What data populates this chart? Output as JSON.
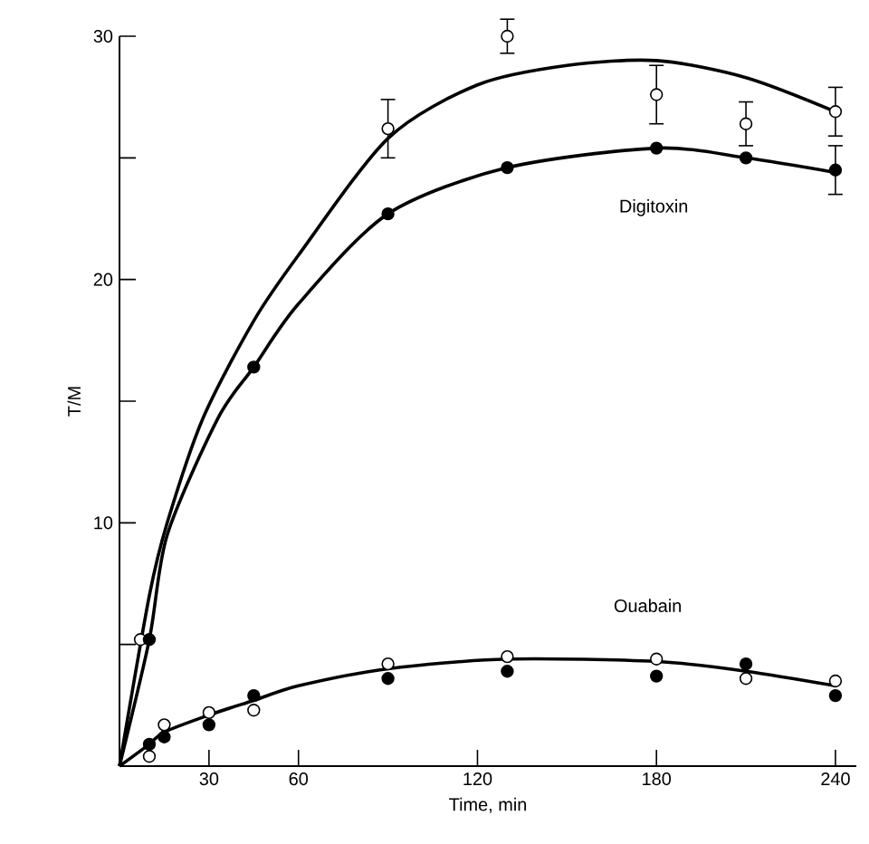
{
  "chart_data": {
    "type": "scatter",
    "xlabel": "Time,  min",
    "ylabel": "T/M",
    "xlim": [
      0,
      247
    ],
    "ylim": [
      0,
      30
    ],
    "xticks": [
      30,
      60,
      120,
      180,
      240
    ],
    "yticks": [
      {
        "value": 5,
        "label": null
      },
      10,
      {
        "value": 15,
        "label": null
      },
      20,
      {
        "value": 25,
        "label": null
      },
      30
    ],
    "annotations": [
      "Digitoxin",
      "Ouabain"
    ],
    "series": [
      {
        "type": "line",
        "marker": "none",
        "color": "#000000",
        "x": [
          0,
          10,
          16,
          28,
          45,
          60,
          90,
          120,
          150,
          180,
          210,
          240
        ],
        "values": [
          0,
          7,
          10,
          14.3,
          18.3,
          21,
          25.8,
          28,
          28.8,
          29,
          28.3,
          26.9
        ]
      },
      {
        "type": "line",
        "marker": "none",
        "color": "#000000",
        "x": [
          0,
          10,
          16,
          33,
          45,
          60,
          90,
          130,
          180,
          210,
          240
        ],
        "values": [
          0,
          5.2,
          9.5,
          14.3,
          16.4,
          19,
          22.7,
          24.6,
          25.4,
          25,
          24.4
        ]
      },
      {
        "type": "line",
        "marker": "none",
        "color": "#000000",
        "x": [
          0,
          10,
          15,
          30,
          45,
          60,
          90,
          130,
          180,
          210,
          240
        ],
        "values": [
          0,
          0.9,
          1.4,
          2.1,
          2.7,
          3.3,
          4,
          4.4,
          4.3,
          3.9,
          3.3
        ]
      },
      {
        "marker": "circle",
        "color": "#ffffff",
        "x": [
          7,
          90,
          130,
          180,
          210,
          240
        ],
        "values": [
          5.2,
          26.2,
          30,
          27.6,
          26.4,
          26.9
        ],
        "errors": [
          null,
          1.2,
          0.7,
          1.2,
          0.9,
          1
        ]
      },
      {
        "marker": "circle",
        "color": "#000000",
        "x": [
          10,
          45,
          90,
          130,
          180,
          210,
          240
        ],
        "values": [
          5.2,
          16.4,
          22.7,
          24.6,
          25.4,
          25,
          24.5
        ],
        "errors": [
          null,
          null,
          null,
          null,
          null,
          null,
          1
        ]
      },
      {
        "marker": "circle",
        "color": "#ffffff",
        "x": [
          10,
          15,
          30,
          45,
          90,
          130,
          180,
          210,
          240
        ],
        "values": [
          0.4,
          1.7,
          2.2,
          2.3,
          4.2,
          4.5,
          4.4,
          3.6,
          3.5
        ]
      },
      {
        "marker": "circle",
        "color": "#000000",
        "x": [
          10,
          15,
          30,
          45,
          90,
          130,
          180,
          210,
          240
        ],
        "values": [
          0.9,
          1.2,
          1.7,
          2.9,
          3.6,
          3.9,
          3.7,
          4.2,
          2.9
        ]
      }
    ]
  }
}
